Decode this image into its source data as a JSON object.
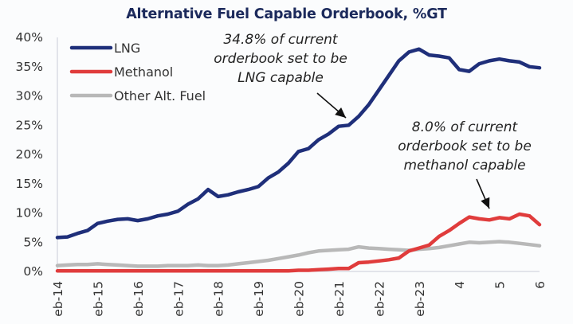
{
  "chart_data": {
    "type": "line",
    "title": "Alternative Fuel Capable Orderbook, %GT",
    "xlabel": "",
    "ylabel": "",
    "ylim": [
      0,
      40
    ],
    "yticks": [
      "0%",
      "5%",
      "10%",
      "15%",
      "20%",
      "25%",
      "30%",
      "35%",
      "40%"
    ],
    "xticks": [
      "eb-14",
      "eb-15",
      "eb-16",
      "eb-17",
      "eb-18",
      "eb-19",
      "eb-20",
      "eb-21",
      "eb-22",
      "eb-23",
      "4",
      "5",
      "6"
    ],
    "x": [
      2014.0,
      2014.25,
      2014.5,
      2014.75,
      2015.0,
      2015.25,
      2015.5,
      2015.75,
      2016.0,
      2016.25,
      2016.5,
      2016.75,
      2017.0,
      2017.25,
      2017.5,
      2017.75,
      2018.0,
      2018.25,
      2018.5,
      2018.75,
      2019.0,
      2019.25,
      2019.5,
      2019.75,
      2020.0,
      2020.25,
      2020.5,
      2020.75,
      2021.0,
      2021.25,
      2021.5,
      2021.75,
      2022.0,
      2022.25,
      2022.5,
      2022.75,
      2023.0,
      2023.25,
      2023.5,
      2023.75,
      2024.0,
      2024.25,
      2024.5,
      2024.75,
      2025.0,
      2025.25,
      2025.5,
      2025.75,
      2026.0
    ],
    "series": [
      {
        "name": "LNG",
        "color": "#1f2f7a",
        "values": [
          5.8,
          5.9,
          6.5,
          7.0,
          8.2,
          8.6,
          8.9,
          9.0,
          8.7,
          9.0,
          9.5,
          9.8,
          10.3,
          11.5,
          12.4,
          14.0,
          12.8,
          13.1,
          13.6,
          14.0,
          14.5,
          16.0,
          17.0,
          18.5,
          20.5,
          21.0,
          22.5,
          23.5,
          24.8,
          25.0,
          26.5,
          28.5,
          31.0,
          33.5,
          36.0,
          37.5,
          38.0,
          37.0,
          36.8,
          36.5,
          34.5,
          34.2,
          35.5,
          36.0,
          36.3,
          36.0,
          35.8,
          35.0,
          34.8
        ]
      },
      {
        "name": "Methanol",
        "color": "#e03c3c",
        "values": [
          0.1,
          0.1,
          0.1,
          0.1,
          0.1,
          0.1,
          0.1,
          0.1,
          0.1,
          0.1,
          0.1,
          0.1,
          0.1,
          0.1,
          0.1,
          0.1,
          0.1,
          0.1,
          0.1,
          0.1,
          0.1,
          0.1,
          0.1,
          0.1,
          0.2,
          0.2,
          0.3,
          0.4,
          0.5,
          0.5,
          1.5,
          1.6,
          1.8,
          2.0,
          2.3,
          3.5,
          4.0,
          4.5,
          6.0,
          7.0,
          8.2,
          9.3,
          9.0,
          8.8,
          9.2,
          9.0,
          9.8,
          9.5,
          8.0
        ]
      },
      {
        "name": "Other Alt. Fuel",
        "color": "#b8b8b8",
        "values": [
          1.0,
          1.1,
          1.2,
          1.2,
          1.3,
          1.2,
          1.1,
          1.0,
          0.9,
          0.9,
          0.9,
          1.0,
          1.0,
          1.0,
          1.1,
          1.0,
          1.0,
          1.1,
          1.3,
          1.5,
          1.7,
          1.9,
          2.2,
          2.5,
          2.8,
          3.2,
          3.5,
          3.6,
          3.7,
          3.8,
          4.2,
          4.0,
          3.9,
          3.8,
          3.7,
          3.6,
          3.8,
          3.9,
          4.1,
          4.4,
          4.7,
          5.0,
          4.9,
          5.0,
          5.1,
          5.0,
          4.8,
          4.6,
          4.4
        ]
      }
    ],
    "legend": {
      "position": "top-left",
      "entries": [
        "LNG",
        "Methanol",
        "Other Alt. Fuel"
      ]
    },
    "annotations": [
      {
        "lines": [
          "34.8% of current",
          "orderbook set to be",
          "LNG capable"
        ],
        "target_series": "LNG",
        "target_x": 2021.3
      },
      {
        "lines": [
          "8.0% of current",
          "orderbook set to be",
          "methanol capable"
        ],
        "target_series": "Methanol",
        "target_x": 2024.9
      }
    ],
    "grid": false
  }
}
